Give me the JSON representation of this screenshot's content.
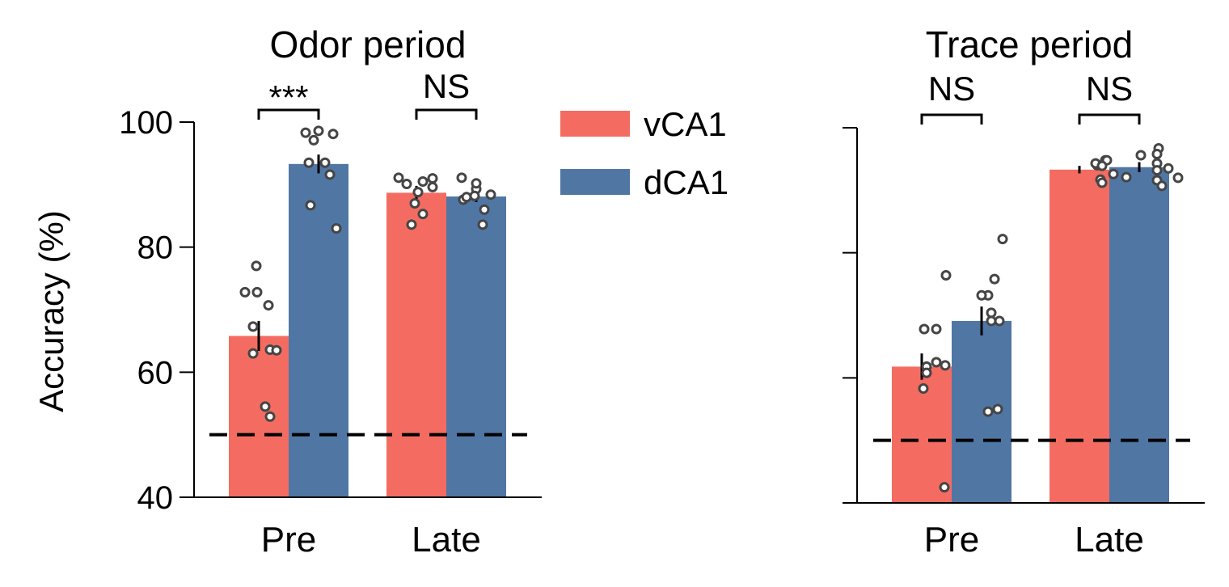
{
  "chart_data": [
    {
      "type": "bar",
      "title": "Odor period",
      "xlabel": "",
      "ylabel": "Accuracy (%)",
      "ylim": [
        40,
        100
      ],
      "yticks": [
        40,
        60,
        80,
        100
      ],
      "show_tick_labels": true,
      "chance_level": 50,
      "categories": [
        "Pre",
        "Late"
      ],
      "series": [
        {
          "name": "vCA1",
          "color": "#F46C61",
          "values": [
            65.8,
            88.7
          ],
          "sem": [
            2.4,
            1.1
          ],
          "points": [
            [
              77.0,
              72.8,
              72.8,
              70.7,
              67.3,
              63.6,
              63.0,
              63.5,
              54.5,
              52.9
            ],
            [
              91.0,
              90.5,
              89.6,
              90.1,
              88.8,
              87.0,
              85.3,
              83.6,
              91.1
            ]
          ]
        },
        {
          "name": "dCA1",
          "color": "#5076A4",
          "values": [
            93.3,
            88.1
          ],
          "sem": [
            1.5,
            0.9
          ],
          "points": [
            [
              98.6,
              98.1,
              98.3,
              97.1,
              93.5,
              93.5,
              91.6,
              86.7,
              83.0
            ],
            [
              89.3,
              88.4,
              87.6,
              86.0,
              83.6,
              91.1,
              90.2,
              88.2,
              88.0
            ]
          ]
        }
      ],
      "significance": [
        "***",
        "NS"
      ]
    },
    {
      "type": "bar",
      "title": "Trace period",
      "xlabel": "",
      "ylabel": "",
      "ylim": [
        40,
        100
      ],
      "yticks": [
        40,
        60,
        80,
        100
      ],
      "show_tick_labels": false,
      "chance_level": 50,
      "categories": [
        "Pre",
        "Late"
      ],
      "series": [
        {
          "name": "vCA1",
          "color": "#F46C61",
          "values": [
            61.8,
            93.3
          ],
          "sem": [
            2.1,
            0.6
          ],
          "points": [
            [
              76.4,
              67.8,
              67.8,
              62.5,
              61.8,
              62.0,
              60.8,
              58.3,
              42.5
            ],
            [
              94.8,
              94.0,
              94.3,
              94.8,
              93.9,
              92.6,
              92.1,
              91.7,
              91.2
            ]
          ]
        },
        {
          "name": "dCA1",
          "color": "#5076A4",
          "values": [
            69.1,
            93.7
          ],
          "sem": [
            2.3,
            0.8
          ],
          "points": [
            [
              82.2,
              75.8,
              73.2,
              73.2,
              70.4,
              69.1,
              69.1,
              55.0,
              54.6
            ],
            [
              96.7,
              95.8,
              95.6,
              94.3,
              93.5,
              93.2,
              92.0,
              91.6,
              90.7
            ]
          ]
        }
      ],
      "significance": [
        "NS",
        "NS"
      ]
    }
  ]
}
